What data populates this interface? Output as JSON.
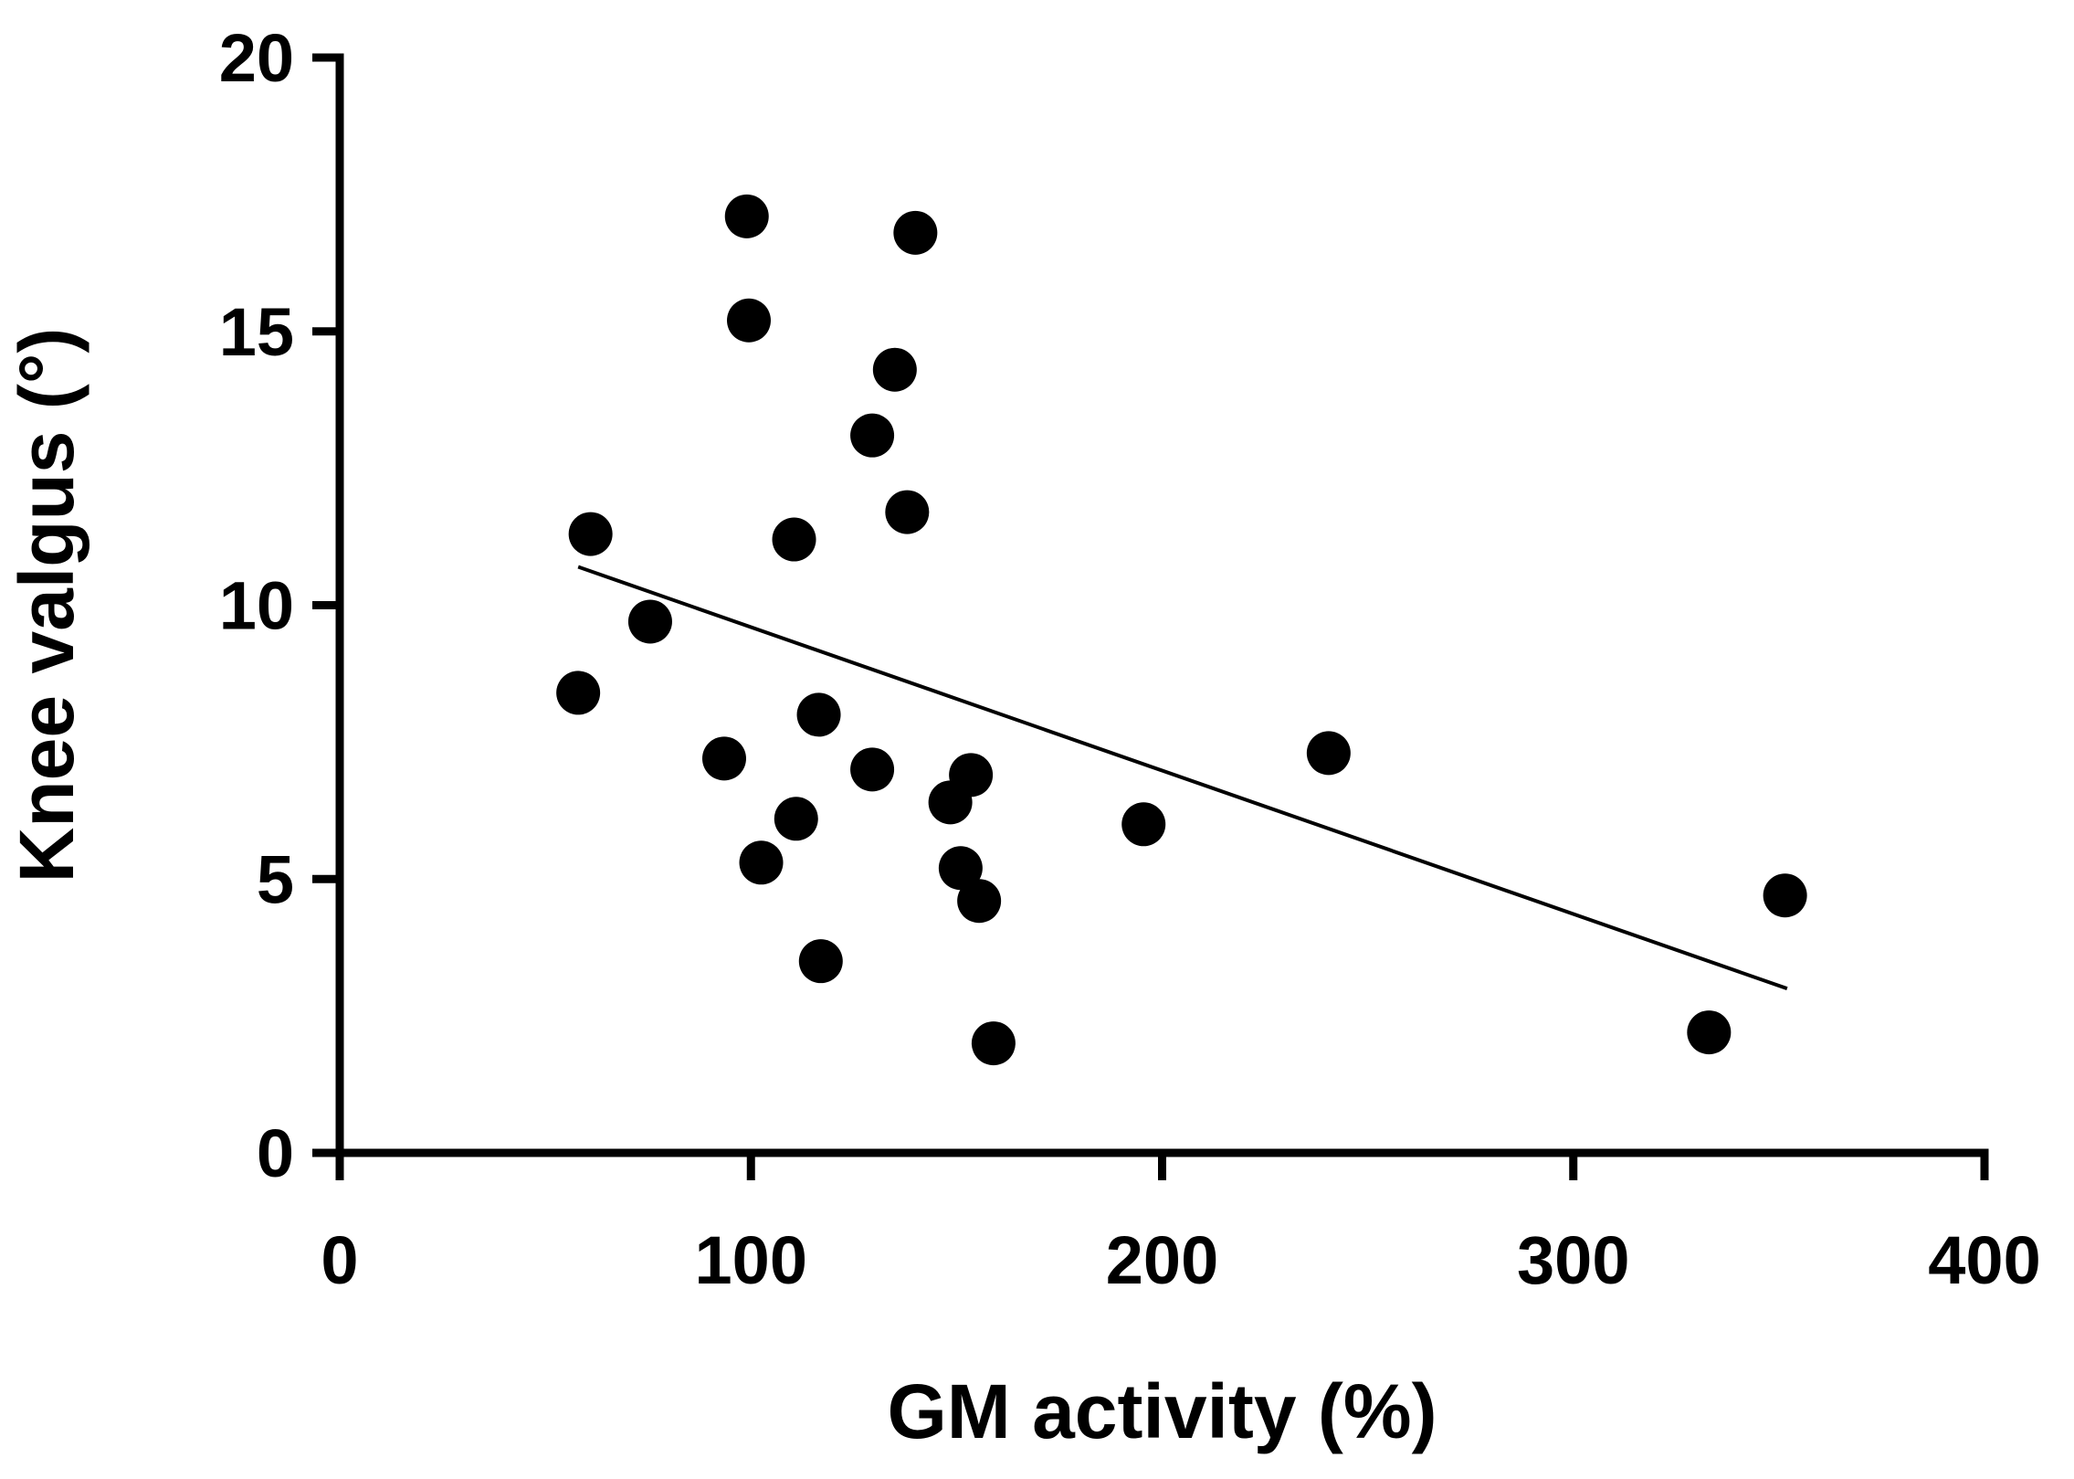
{
  "chart_data": {
    "type": "scatter",
    "title": "",
    "xlabel": "GM activity (%)",
    "ylabel": "Knee valgus (°)",
    "xlim": [
      0,
      400
    ],
    "ylim": [
      0,
      20
    ],
    "xticks": [
      0,
      100,
      200,
      300,
      400
    ],
    "yticks": [
      0,
      5,
      10,
      15,
      20
    ],
    "xtick_labels": [
      "0",
      "100",
      "200",
      "300",
      "400"
    ],
    "ytick_labels": [
      "0",
      "5",
      "10",
      "15",
      "20"
    ],
    "grid": false,
    "marker_color": "#000000",
    "series": [
      {
        "name": "",
        "points": [
          {
            "x": 99,
            "y": 17.1
          },
          {
            "x": 140,
            "y": 16.8
          },
          {
            "x": 99.5,
            "y": 15.2
          },
          {
            "x": 135,
            "y": 14.3
          },
          {
            "x": 129.5,
            "y": 13.1
          },
          {
            "x": 138,
            "y": 11.7
          },
          {
            "x": 61,
            "y": 11.3
          },
          {
            "x": 110.5,
            "y": 11.2
          },
          {
            "x": 75.5,
            "y": 9.7
          },
          {
            "x": 58,
            "y": 8.4
          },
          {
            "x": 116.5,
            "y": 8.0
          },
          {
            "x": 93.5,
            "y": 7.2
          },
          {
            "x": 129.5,
            "y": 7.0
          },
          {
            "x": 153.5,
            "y": 6.9
          },
          {
            "x": 240.5,
            "y": 7.3
          },
          {
            "x": 148.5,
            "y": 6.4
          },
          {
            "x": 111,
            "y": 6.1
          },
          {
            "x": 195.5,
            "y": 6.0
          },
          {
            "x": 102.5,
            "y": 5.3
          },
          {
            "x": 151,
            "y": 5.2
          },
          {
            "x": 155.5,
            "y": 4.6
          },
          {
            "x": 351.5,
            "y": 4.7
          },
          {
            "x": 117,
            "y": 3.5
          },
          {
            "x": 159,
            "y": 2.0
          },
          {
            "x": 333,
            "y": 2.2
          }
        ]
      }
    ],
    "trendline": {
      "type": "linear",
      "x": [
        58,
        352
      ],
      "y": [
        10.7,
        3.0
      ],
      "color": "#000000"
    }
  }
}
